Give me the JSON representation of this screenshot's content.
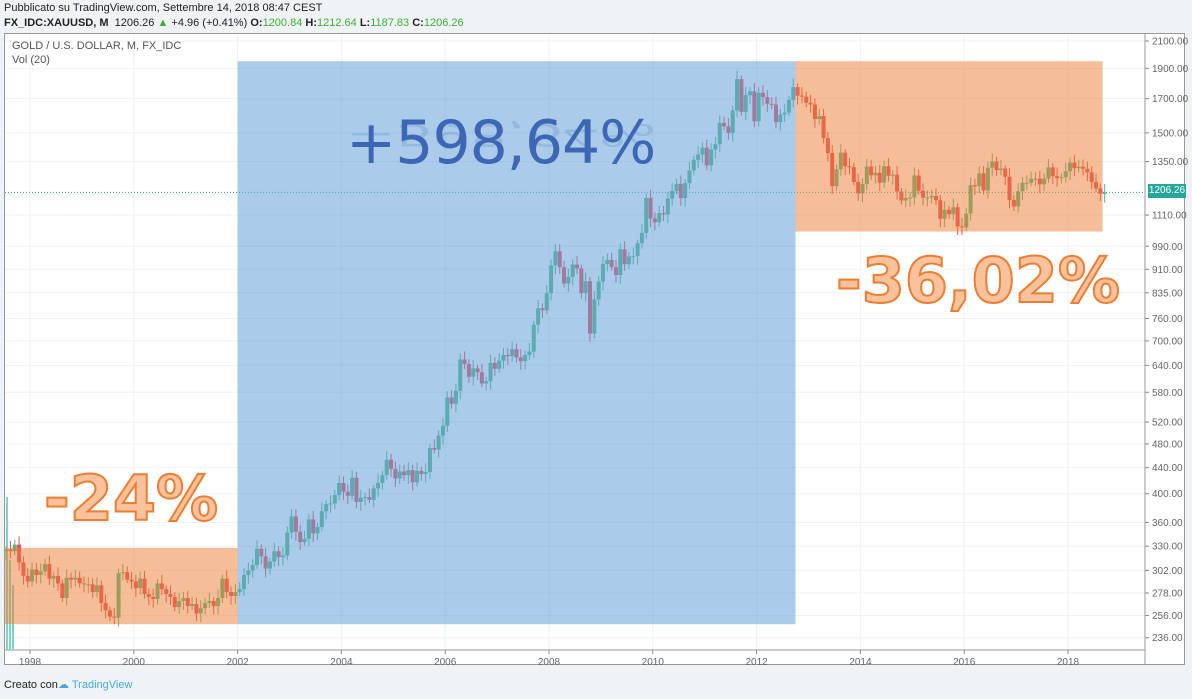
{
  "header": {
    "published": "Pubblicato su TradingView.com, Settembre 14, 2018 08:47 CEST",
    "symbol": "FX_IDC:XAUUSD, M",
    "last": "1206.26",
    "change": "+4.96 (+0.41%)",
    "open_label": "O:",
    "open": "1200.84",
    "high_label": "H:",
    "high": "1212.64",
    "low_label": "L:",
    "low": "1187.83",
    "close_label": "C:",
    "close": "1206.26"
  },
  "legend": {
    "title": "GOLD / U.S. DOLLAR, M, FX_IDC",
    "volume": "Vol (20)"
  },
  "footer": {
    "created_with": "Creato con",
    "brand": "TradingView"
  },
  "colors": {
    "up": "#53b987",
    "down": "#eb4d5c",
    "blue_box": "#adcbe9",
    "orange_box": "#f4bc96",
    "price_line": "#26a69a"
  },
  "chart_data": {
    "type": "candlestick",
    "interval": "monthly",
    "start": "1997-07",
    "yscale": "log",
    "ylim": [
      225,
      2120
    ],
    "current_price": "1206.26",
    "y_ticks": [
      "2100.00",
      "1900.00",
      "1700.00",
      "1500.00",
      "1350.00",
      "1110.00",
      "990.00",
      "910.00",
      "835.00",
      "760.00",
      "700.00",
      "640.00",
      "580.00",
      "520.00",
      "480.00",
      "440.00",
      "400.00",
      "360.00",
      "330.00",
      "302.00",
      "278.00",
      "256.00",
      "236.00"
    ],
    "x_ticks": [
      "1998",
      "2000",
      "2002",
      "2004",
      "2006",
      "2008",
      "2010",
      "2012",
      "2014",
      "2016",
      "2018"
    ],
    "closes": [
      326,
      324,
      332,
      311,
      296,
      290,
      303,
      297,
      301,
      309,
      293,
      296,
      288,
      273,
      294,
      292,
      294,
      288,
      287,
      287,
      279,
      286,
      268,
      261,
      255,
      254,
      299,
      300,
      292,
      290,
      283,
      293,
      277,
      274,
      272,
      288,
      282,
      277,
      274,
      264,
      270,
      273,
      265,
      267,
      258,
      263,
      268,
      270,
      265,
      273,
      293,
      279,
      275,
      279,
      282,
      297,
      302,
      308,
      327,
      318,
      304,
      312,
      324,
      317,
      319,
      347,
      368,
      348,
      335,
      339,
      364,
      346,
      354,
      375,
      385,
      386,
      398,
      416,
      403,
      397,
      424,
      388,
      394,
      395,
      391,
      408,
      416,
      428,
      453,
      438,
      423,
      434,
      428,
      436,
      417,
      435,
      430,
      433,
      473,
      470,
      495,
      513,
      569,
      556,
      583,
      654,
      643,
      614,
      633,
      624,
      599,
      604,
      646,
      632,
      651,
      665,
      662,
      679,
      659,
      650,
      665,
      673,
      743,
      789,
      783,
      834,
      923,
      972,
      917,
      864,
      885,
      926,
      913,
      834,
      871,
      719,
      815,
      870,
      928,
      942,
      917,
      891,
      979,
      927,
      954,
      955,
      1001,
      1040,
      1182,
      1096,
      1081,
      1118,
      1113,
      1179,
      1212,
      1244,
      1181,
      1248,
      1307,
      1359,
      1386,
      1421,
      1332,
      1411,
      1439,
      1556,
      1536,
      1500,
      1628,
      1826,
      1620,
      1722,
      1746,
      1565,
      1737,
      1710,
      1668,
      1664,
      1560,
      1604,
      1615,
      1692,
      1773,
      1719,
      1713,
      1675,
      1664,
      1578,
      1595,
      1472,
      1393,
      1234,
      1312,
      1395,
      1327,
      1323,
      1253,
      1202,
      1244,
      1326,
      1284,
      1296,
      1250,
      1327,
      1282,
      1287,
      1210,
      1171,
      1182,
      1184,
      1283,
      1213,
      1183,
      1184,
      1190,
      1172,
      1095,
      1132,
      1114,
      1142,
      1065,
      1061,
      1116,
      1238,
      1234,
      1293,
      1215,
      1320,
      1351,
      1309,
      1316,
      1277,
      1173,
      1146,
      1211,
      1249,
      1249,
      1268,
      1268,
      1242,
      1269,
      1322,
      1280,
      1271,
      1275,
      1303,
      1345,
      1318,
      1325,
      1315,
      1298,
      1253,
      1224,
      1200,
      1206
    ],
    "annotations": [
      {
        "label": "-24%",
        "from": "1997-07",
        "to": "2002-01",
        "range": [
          248,
          328
        ]
      },
      {
        "label": "+598,64%",
        "from": "2002-01",
        "to": "2012-10",
        "range": [
          248,
          1950
        ]
      },
      {
        "label": "-36,02%",
        "from": "2012-10",
        "to": "2018-09",
        "range": [
          1045,
          1950
        ]
      }
    ]
  }
}
